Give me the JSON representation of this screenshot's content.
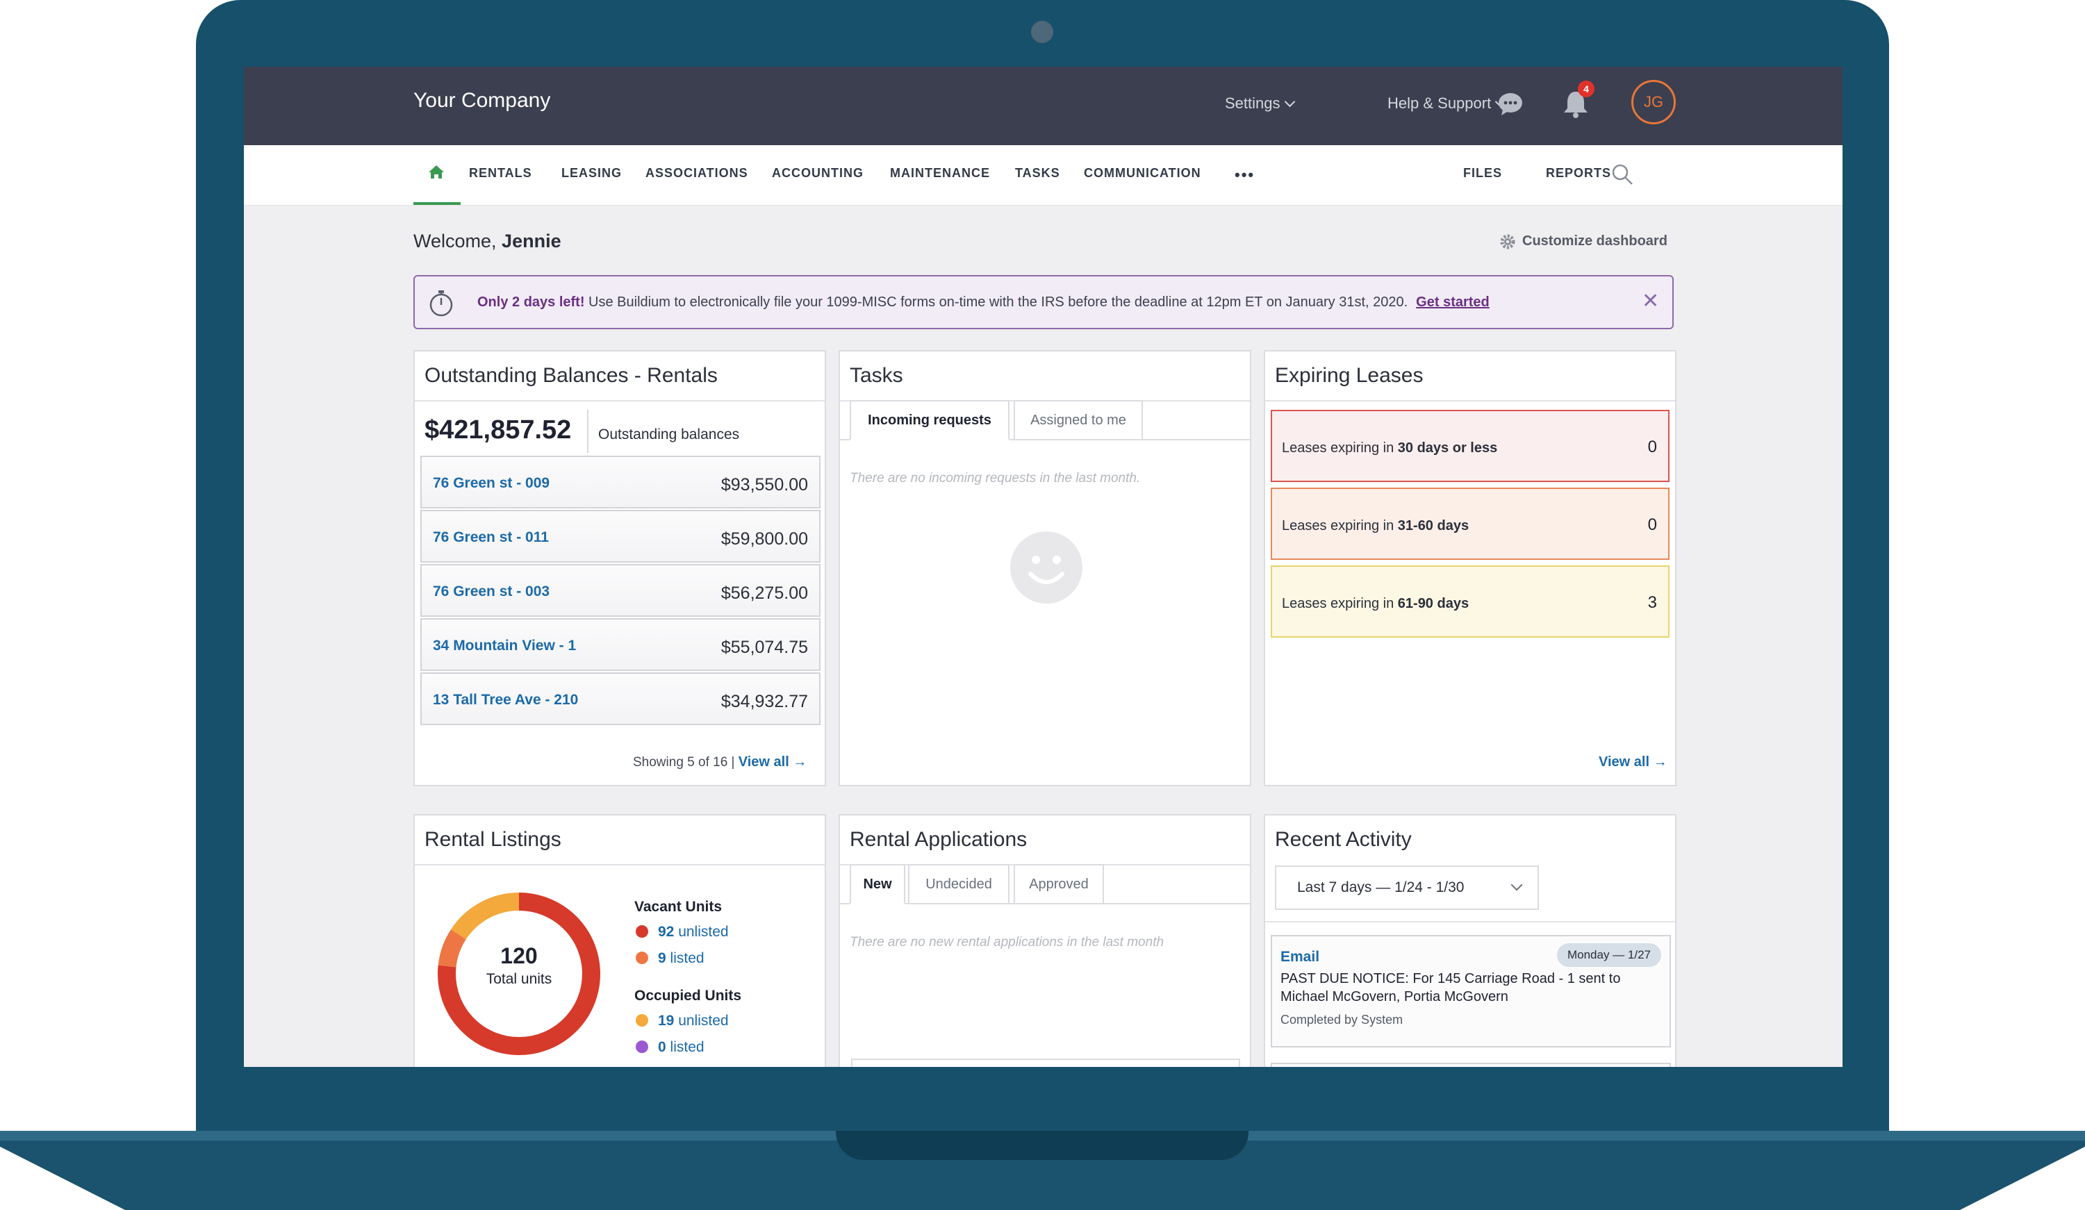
{
  "topbar": {
    "company": "Your Company",
    "settings": "Settings",
    "help": "Help & Support",
    "notification_count": "4",
    "avatar_initials": "JG"
  },
  "nav": {
    "items": [
      "RENTALS",
      "LEASING",
      "ASSOCIATIONS",
      "ACCOUNTING",
      "MAINTENANCE",
      "TASKS",
      "COMMUNICATION"
    ],
    "more": "•••",
    "files": "FILES",
    "reports": "REPORTS"
  },
  "welcome": {
    "prefix": "Welcome, ",
    "name": "Jennie"
  },
  "customize": "Customize dashboard",
  "banner": {
    "bold": "Only 2 days left!",
    "text": " Use Buildium to electronically file your 1099-MISC forms on-time with the IRS before the deadline at 12pm ET on January 31st, 2020.",
    "link": "Get started",
    "close": "✕"
  },
  "balances": {
    "title": "Outstanding Balances - Rentals",
    "total": "$421,857.52",
    "total_label": "Outstanding balances",
    "rows": [
      {
        "name": "76 Green st - 009",
        "amount": "$93,550.00"
      },
      {
        "name": "76 Green st - 011",
        "amount": "$59,800.00"
      },
      {
        "name": "76 Green st - 003",
        "amount": "$56,275.00"
      },
      {
        "name": "34 Mountain View - 1",
        "amount": "$55,074.75"
      },
      {
        "name": "13 Tall Tree Ave - 210",
        "amount": "$34,932.77"
      }
    ],
    "showing": "Showing 5 of 16 |",
    "view_all": "View all →"
  },
  "tasks": {
    "title": "Tasks",
    "tabs": [
      "Incoming requests",
      "Assigned to me"
    ],
    "empty": "There are no incoming requests in the last month."
  },
  "leases": {
    "title": "Expiring Leases",
    "items": [
      {
        "pre": "Leases expiring in ",
        "bold": "30 days or less",
        "count": "0",
        "border": "#d9534f",
        "bg": "#fbeeee"
      },
      {
        "pre": "Leases expiring in ",
        "bold": "31-60 days",
        "count": "0",
        "border": "#e8885a",
        "bg": "#fcefe8"
      },
      {
        "pre": "Leases expiring in ",
        "bold": "61-90 days",
        "count": "3",
        "border": "#e8d46a",
        "bg": "#fcf8e4"
      }
    ],
    "view_all": "View all →"
  },
  "listings": {
    "title": "Rental Listings",
    "total": "120",
    "total_label": "Total units",
    "vacant_heading": "Vacant Units",
    "vacant": [
      {
        "count": "92",
        "label": " unlisted",
        "color": "#d63a2a"
      },
      {
        "count": "9",
        "label": " listed",
        "color": "#ee7644"
      }
    ],
    "occupied_heading": "Occupied Units",
    "occupied": [
      {
        "count": "19",
        "label": " unlisted",
        "color": "#f3a93b"
      },
      {
        "count": "0",
        "label": " listed",
        "color": "#9b59d0"
      }
    ]
  },
  "applications": {
    "title": "Rental Applications",
    "tabs": [
      "New",
      "Undecided",
      "Approved"
    ],
    "empty": "There are no new rental applications in the last month"
  },
  "activity": {
    "title": "Recent Activity",
    "range": "Last 7 days — 1/24 - 1/30",
    "items": [
      {
        "type": "Email",
        "date": "Monday — 1/27",
        "desc": "PAST DUE NOTICE: For 145 Carriage Road - 1 sent to Michael McGovern, Portia McGovern",
        "by": "Completed by System"
      }
    ]
  }
}
